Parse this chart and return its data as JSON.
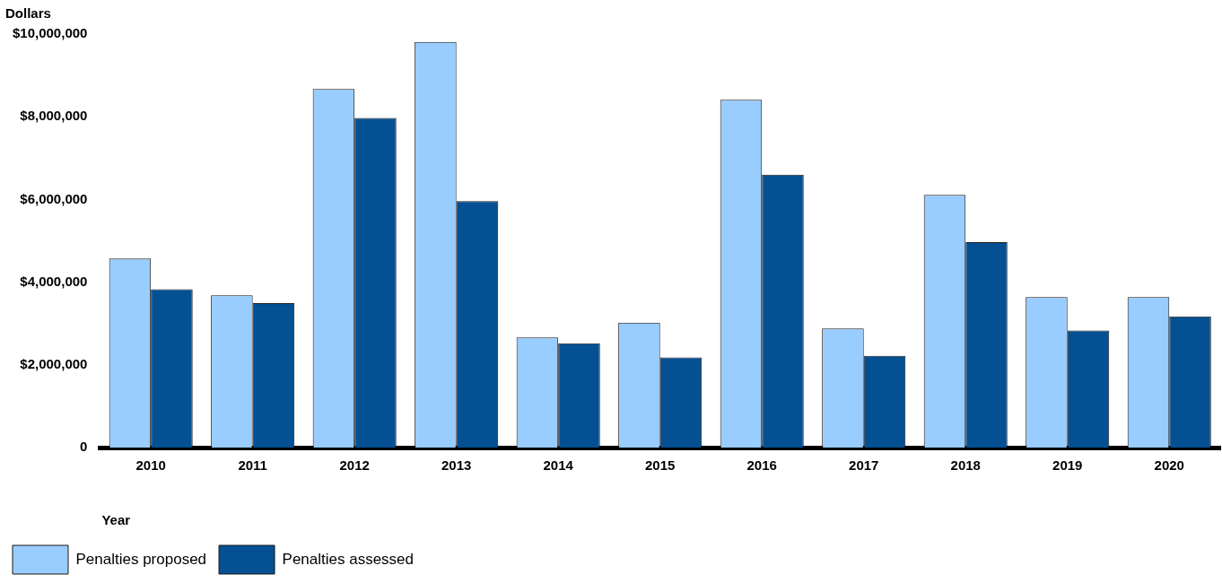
{
  "chart_data": {
    "type": "bar",
    "ylabel": "Dollars",
    "xlabel": "Year",
    "categories": [
      "2010",
      "2011",
      "2012",
      "2013",
      "2014",
      "2015",
      "2016",
      "2017",
      "2018",
      "2019",
      "2020"
    ],
    "series": [
      {
        "name": "Penalties proposed",
        "color": "#99ccff",
        "values": [
          4570000,
          3680000,
          8670000,
          9810000,
          2660000,
          3020000,
          8410000,
          2880000,
          6110000,
          3640000,
          3640000
        ]
      },
      {
        "name": "Penalties assessed",
        "color": "#045093",
        "values": [
          3830000,
          3490000,
          7970000,
          5960000,
          2520000,
          2180000,
          6600000,
          2220000,
          4970000,
          2830000,
          3170000
        ]
      }
    ],
    "ylim": [
      0,
      10000000
    ],
    "yticks": [
      0,
      {
        "value": 2000000,
        "label": "$2,000,000"
      },
      {
        "value": 4000000,
        "label": "$4,000,000"
      },
      {
        "value": 6000000,
        "label": "$6,000,000"
      },
      {
        "value": 8000000,
        "label": "$8,000,000"
      },
      {
        "value": 10000000,
        "label": "$10,000,000"
      }
    ],
    "grid": false,
    "legend": "bottom left"
  }
}
